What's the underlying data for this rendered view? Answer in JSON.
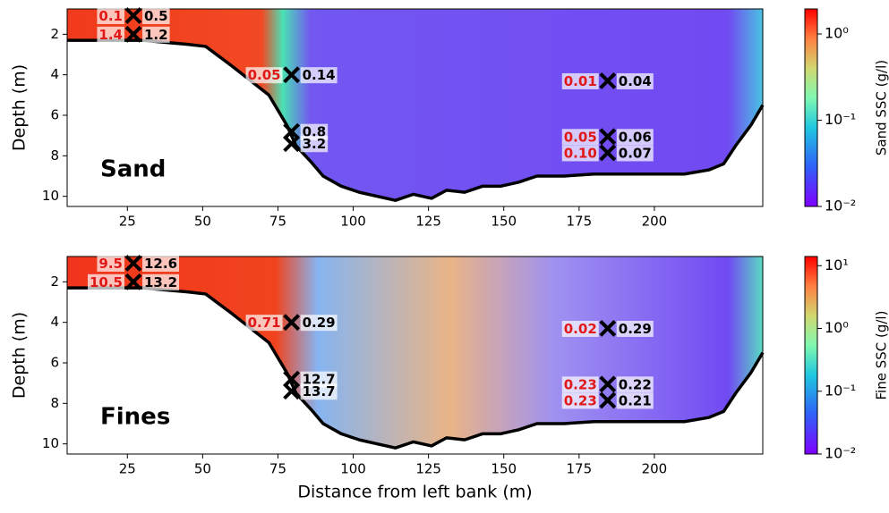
{
  "chart_data": [
    {
      "type": "heatmap",
      "panel_label": "Sand",
      "ylabel": "Depth (m)",
      "colorbar_label": "Sand SSC (g/l)",
      "xlim": [
        5,
        236
      ],
      "xticks": [
        25,
        50,
        75,
        100,
        125,
        150,
        175,
        200
      ],
      "ylim": [
        10.5,
        0.75
      ],
      "yticks": [
        2,
        4,
        6,
        8,
        10
      ],
      "colorbar_log_scale": true,
      "colorbar_lim": [
        0.01,
        1.95
      ],
      "colorbar_ticks": [
        {
          "value": 0.01,
          "label": "10⁻²"
        },
        {
          "value": 0.1,
          "label": "10⁻¹"
        },
        {
          "value": 1,
          "label": "10⁰"
        }
      ],
      "bed": {
        "x": [
          5,
          30,
          45,
          51,
          60,
          66,
          72,
          78,
          81,
          86,
          90,
          96,
          102,
          108,
          114,
          120,
          126,
          131,
          137,
          143,
          149,
          155,
          161,
          170,
          180,
          191,
          200,
          210,
          218,
          223,
          227,
          232,
          236
        ],
        "depth": [
          2.3,
          2.3,
          2.5,
          2.6,
          3.6,
          4.3,
          5.0,
          6.5,
          7.5,
          8.3,
          9.0,
          9.5,
          9.8,
          10.0,
          10.2,
          9.9,
          10.1,
          9.7,
          9.8,
          9.5,
          9.5,
          9.3,
          9.0,
          9.0,
          8.9,
          8.9,
          8.9,
          8.9,
          8.7,
          8.4,
          7.5,
          6.5,
          5.5
        ]
      },
      "samples": {
        "x": [
          27,
          27,
          79.5,
          79.5,
          79.5,
          184.5,
          184.5,
          184.5
        ],
        "depth": [
          1.08,
          2.0,
          4.0,
          6.8,
          7.4,
          4.3,
          7.05,
          7.85
        ],
        "left_values": [
          0.1,
          1.4,
          0.05,
          null,
          null,
          0.01,
          0.05,
          0.1
        ],
        "left_value_labels": [
          "0.1",
          "1.4",
          "0.05",
          null,
          null,
          "0.01",
          "0.05",
          "0.10"
        ],
        "right_values": [
          0.5,
          1.2,
          0.14,
          0.8,
          3.2,
          0.04,
          0.06,
          0.07
        ]
      }
    },
    {
      "type": "heatmap",
      "panel_label": "Fines",
      "ylabel": "Depth (m)",
      "colorbar_label": "Fine SSC (g/l)",
      "xlabel": "Distance from left bank (m)",
      "xlim": [
        5,
        236
      ],
      "xticks": [
        25,
        50,
        75,
        100,
        125,
        150,
        175,
        200
      ],
      "ylim": [
        10.5,
        0.75
      ],
      "yticks": [
        2,
        4,
        6,
        8,
        10
      ],
      "colorbar_log_scale": true,
      "colorbar_lim": [
        0.01,
        14
      ],
      "colorbar_ticks": [
        {
          "value": 0.01,
          "label": "10⁻²"
        },
        {
          "value": 0.1,
          "label": "10⁻¹"
        },
        {
          "value": 1,
          "label": "10⁰"
        },
        {
          "value": 10,
          "label": "10¹"
        }
      ],
      "bed": {
        "x": [
          5,
          30,
          45,
          51,
          60,
          66,
          72,
          78,
          81,
          86,
          90,
          96,
          102,
          108,
          114,
          120,
          126,
          131,
          137,
          143,
          149,
          155,
          161,
          170,
          180,
          191,
          200,
          210,
          218,
          223,
          227,
          232,
          236
        ],
        "depth": [
          2.3,
          2.3,
          2.5,
          2.6,
          3.6,
          4.3,
          5.0,
          6.5,
          7.5,
          8.3,
          9.0,
          9.5,
          9.8,
          10.0,
          10.2,
          9.9,
          10.1,
          9.7,
          9.8,
          9.5,
          9.5,
          9.3,
          9.0,
          9.0,
          8.9,
          8.9,
          8.9,
          8.9,
          8.7,
          8.4,
          7.5,
          6.5,
          5.5
        ]
      },
      "samples": {
        "x": [
          27,
          27,
          79.5,
          79.5,
          79.5,
          184.5,
          184.5,
          184.5
        ],
        "depth": [
          1.08,
          2.0,
          4.0,
          6.8,
          7.4,
          4.3,
          7.05,
          7.85
        ],
        "left_values": [
          9.5,
          10.5,
          0.71,
          null,
          null,
          0.02,
          0.23,
          0.23
        ],
        "right_values": [
          12.6,
          13.2,
          0.29,
          12.7,
          13.7,
          0.29,
          0.22,
          0.21
        ]
      }
    }
  ]
}
